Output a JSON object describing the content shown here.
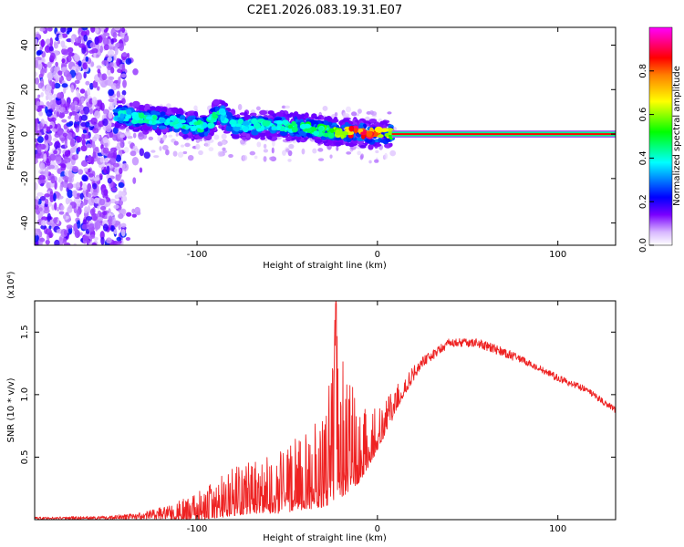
{
  "title": "C2E1.2026.083.19.31.E07",
  "chart_data": [
    {
      "type": "heatmap",
      "title": "C2E1.2026.083.19.31.E07",
      "xlabel": "Height of straight line (km)",
      "ylabel": "Frequency (Hz)",
      "xlim": [
        -190,
        132
      ],
      "ylim": [
        -50,
        48
      ],
      "x_ticks": [
        -100,
        0,
        100
      ],
      "x_tick_labels": [
        "-100",
        "0",
        "100"
      ],
      "y_ticks": [
        -40,
        -20,
        0,
        20,
        40
      ],
      "y_tick_labels": [
        "-40",
        "-20",
        "0",
        "20",
        "40"
      ],
      "colorbar": {
        "label": "Normalized spectral amplitude",
        "range": [
          0,
          1
        ],
        "ticks": [
          0.0,
          0.2,
          0.4,
          0.6,
          0.8
        ],
        "tick_labels": [
          "0.0",
          "0.2",
          "0.4",
          "0.6",
          "0.8"
        ],
        "colormap": [
          "#ffffff",
          "#7a00ff",
          "#0000ff",
          "#00ffff",
          "#00ff00",
          "#ffff00",
          "#ff8000",
          "#ff0000",
          "#ff00ff"
        ]
      },
      "features": {
        "noise_region": {
          "x": [
            -190,
            -140
          ],
          "amplitude": 0.2
        },
        "trace": [
          {
            "x": -145,
            "y": 9,
            "amplitude": 0.35
          },
          {
            "x": -130,
            "y": 7,
            "amplitude": 0.4
          },
          {
            "x": -110,
            "y": 5,
            "amplitude": 0.4
          },
          {
            "x": -95,
            "y": 3,
            "amplitude": 0.4
          },
          {
            "x": -88,
            "y": 10,
            "amplitude": 0.4
          },
          {
            "x": -80,
            "y": 4,
            "amplitude": 0.35
          },
          {
            "x": -60,
            "y": 4,
            "amplitude": 0.4
          },
          {
            "x": -40,
            "y": 3,
            "amplitude": 0.45
          },
          {
            "x": -25,
            "y": 1,
            "amplitude": 0.5
          },
          {
            "x": -15,
            "y": 1,
            "amplitude": 0.8
          },
          {
            "x": -5,
            "y": 0,
            "amplitude": 0.85
          },
          {
            "x": 8,
            "y": 0,
            "amplitude": 0.6
          }
        ],
        "carrier_line": {
          "x": [
            8,
            132
          ],
          "y": 0,
          "amplitude": 0.95
        }
      }
    },
    {
      "type": "line",
      "xlabel": "Height of straight line (km)",
      "ylabel": "SNR (10 * v/v)",
      "y_multiplier_label": "(x10⁴)",
      "xlim": [
        -190,
        132
      ],
      "ylim": [
        0,
        1.75
      ],
      "x_ticks": [
        -100,
        0,
        100
      ],
      "x_tick_labels": [
        "-100",
        "0",
        "100"
      ],
      "y_ticks": [
        0.5,
        1.0,
        1.5
      ],
      "y_tick_labels": [
        "0.5",
        "1.0",
        "1.5"
      ],
      "line_color": "#ee2222",
      "series_envelope": [
        {
          "x": -190,
          "low": 0.0,
          "high": 0.02
        },
        {
          "x": -150,
          "low": 0.0,
          "high": 0.03
        },
        {
          "x": -130,
          "low": 0.0,
          "high": 0.06
        },
        {
          "x": -115,
          "low": 0.0,
          "high": 0.12
        },
        {
          "x": -100,
          "low": 0.0,
          "high": 0.22
        },
        {
          "x": -85,
          "low": 0.02,
          "high": 0.38
        },
        {
          "x": -70,
          "low": 0.05,
          "high": 0.48
        },
        {
          "x": -55,
          "low": 0.05,
          "high": 0.55
        },
        {
          "x": -40,
          "low": 0.08,
          "high": 0.7
        },
        {
          "x": -30,
          "low": 0.1,
          "high": 0.85
        },
        {
          "x": -23,
          "low": 0.15,
          "high": 1.75
        },
        {
          "x": -18,
          "low": 0.2,
          "high": 1.2
        },
        {
          "x": -10,
          "low": 0.3,
          "high": 0.95
        },
        {
          "x": -2,
          "low": 0.5,
          "high": 0.9
        },
        {
          "x": 5,
          "low": 0.7,
          "high": 0.98
        },
        {
          "x": 15,
          "low": 1.0,
          "high": 1.15
        },
        {
          "x": 25,
          "low": 1.22,
          "high": 1.3
        },
        {
          "x": 40,
          "low": 1.38,
          "high": 1.45
        },
        {
          "x": 55,
          "low": 1.38,
          "high": 1.45
        },
        {
          "x": 70,
          "low": 1.3,
          "high": 1.38
        },
        {
          "x": 85,
          "low": 1.22,
          "high": 1.27
        },
        {
          "x": 100,
          "low": 1.1,
          "high": 1.16
        },
        {
          "x": 115,
          "low": 1.02,
          "high": 1.07
        },
        {
          "x": 132,
          "low": 0.85,
          "high": 0.9
        }
      ]
    }
  ]
}
